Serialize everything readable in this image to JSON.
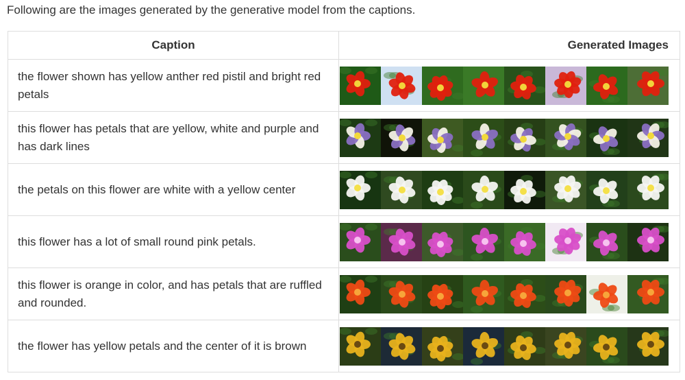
{
  "intro": "Following are the images generated by the generative model from the captions.",
  "table": {
    "headers": {
      "caption": "Caption",
      "images": "Generated Images"
    },
    "rows": [
      {
        "caption": "the flower shown has yellow anther red pistil and bright red petals",
        "petal": "#e0200e",
        "center": "#f2d33a",
        "bg": [
          "#1f5a17",
          "#cfe0f2",
          "#2f6b1f",
          "#3a7a27",
          "#28521b",
          "#c9b8d8",
          "#2c6a1e",
          "#4d6e36"
        ]
      },
      {
        "caption": "this flower has petals that are yellow, white and purple and has dark lines",
        "petal": "#f4f1e6",
        "center": "#f2d93a",
        "accent": "#8a6fc2",
        "bg": [
          "#1d3a14",
          "#101408",
          "#3e5a22",
          "#2c4d18",
          "#263e15",
          "#345220",
          "#1a3312",
          "#203516"
        ]
      },
      {
        "caption": "the petals on this flower are white with a yellow center",
        "petal": "#f6f6f2",
        "center": "#f4e04a",
        "bg": [
          "#173511",
          "#2f4a20",
          "#1e3d13",
          "#2a4a1a",
          "#0f1a0a",
          "#3a5526",
          "#22401a",
          "#2b4a1d"
        ]
      },
      {
        "caption": "this flower has a lot of small round pink petals.",
        "petal": "#d84fc8",
        "center": "#f7c2ef",
        "bg": [
          "#2a4d1c",
          "#5b2a4a",
          "#3d5a2a",
          "#2d5520",
          "#3a6a26",
          "#f1e9f3",
          "#2a4d1c",
          "#1d3213"
        ]
      },
      {
        "caption": "this flower is orange in color, and has petals that are ruffled and rounded.",
        "petal": "#ee4a14",
        "center": "#f7a53a",
        "bg": [
          "#1f3f14",
          "#2b4a1a",
          "#264214",
          "#2f5a1f",
          "#2c4d18",
          "#2a4a1c",
          "#eef0e8",
          "#335a22"
        ]
      },
      {
        "caption": "the flower has yellow petals and the center of it is brown",
        "petal": "#e8b21c",
        "center": "#6a4a12",
        "bg": [
          "#2b3d16",
          "#1d2a36",
          "#34401a",
          "#1b2a3a",
          "#2f3c18",
          "#3a4520",
          "#2a4a1c",
          "#26381a"
        ]
      }
    ]
  }
}
